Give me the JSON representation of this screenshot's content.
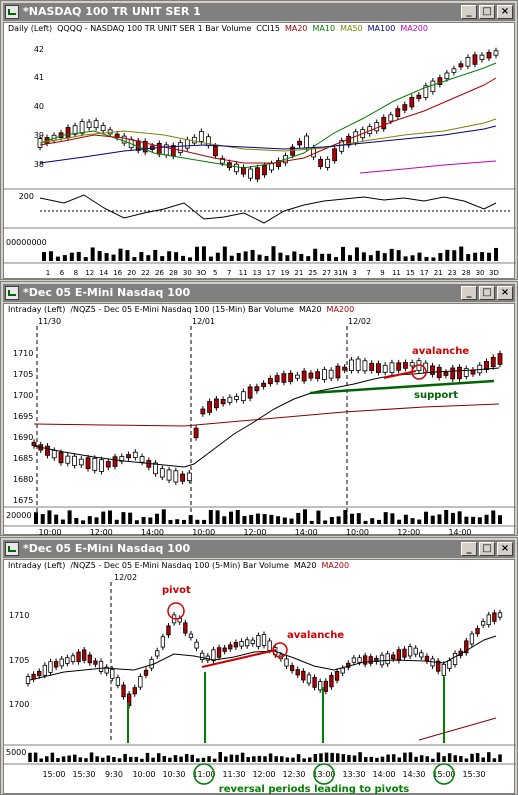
{
  "windows": [
    {
      "title": "*NASDAQ 100 TR UNIT SER 1",
      "legend": [
        {
          "text": "Daily  (Left)",
          "color": "#000000"
        },
        {
          "text": "QQQQ - NASDAQ 100 TR UNIT SER 1  Bar  Volume",
          "color": "#000000"
        },
        {
          "text": "CCI15",
          "color": "#000000"
        },
        {
          "text": "MA20",
          "color": "#b00000"
        },
        {
          "text": "MA10",
          "color": "#008000"
        },
        {
          "text": "MA50",
          "color": "#808000"
        },
        {
          "text": "MA100",
          "color": "#000080"
        },
        {
          "text": "MA200",
          "color": "#c000c0"
        }
      ],
      "price_labels": [
        "42",
        "41",
        "40",
        "39",
        "38"
      ],
      "cci_label": "200",
      "volume_label": "00000000",
      "x_labels": [
        "1",
        "6",
        "8",
        "12",
        "14",
        "16",
        "20",
        "22",
        "26",
        "28",
        "30",
        "3O",
        "5",
        "7",
        "11",
        "13",
        "17",
        "19",
        "21",
        "25",
        "27",
        "31N",
        "3",
        "7",
        "9",
        "11",
        "15",
        "17",
        "21",
        "23",
        "28",
        "30",
        "3D"
      ]
    },
    {
      "title": "*Dec 05  E-Mini Nasdaq 100",
      "legend": [
        {
          "text": "Intraday  (Left)",
          "color": "#000000"
        },
        {
          "text": "/NQZ5 - Dec 05  E-Mini Nasdaq 100 (15-Min)  Bar  Volume",
          "color": "#000000"
        },
        {
          "text": "MA20",
          "color": "#000000"
        },
        {
          "text": "MA200",
          "color": "#b00000"
        }
      ],
      "date_markers": [
        "11/30",
        "12/01",
        "12/02"
      ],
      "price_labels": [
        "1710",
        "1705",
        "1700",
        "1695",
        "1690",
        "1685",
        "1680",
        "1675"
      ],
      "volume_label": "20000",
      "x_labels": [
        "10:00",
        "12:00",
        "14:00",
        "10:00",
        "12:00",
        "14:00",
        "10:00",
        "12:00",
        "14:00"
      ],
      "annotations": {
        "avalanche": "avalanche",
        "support": "support"
      }
    },
    {
      "title": "*Dec 05  E-Mini Nasdaq 100",
      "legend": [
        {
          "text": "Intraday  (Left)",
          "color": "#000000"
        },
        {
          "text": "/NQZ5 - Dec 05  E-Mini Nasdaq 100 (5-Min)  Bar  Volume",
          "color": "#000000"
        },
        {
          "text": "MA20",
          "color": "#000000"
        },
        {
          "text": "MA200",
          "color": "#b00000"
        }
      ],
      "date_markers": [
        "12/02"
      ],
      "price_labels": [
        "1710",
        "1705",
        "1700"
      ],
      "volume_label": "5000",
      "x_labels": [
        "15:00",
        "15:30",
        "9:30",
        "10:00",
        "10:30",
        "11:00",
        "11:30",
        "12:00",
        "12:30",
        "13:00",
        "13:30",
        "14:00",
        "14:30",
        "15:00",
        "15:30"
      ],
      "annotations": {
        "pivot": "pivot",
        "avalanche": "avalanche",
        "footer": "reversal periods leading to pivots"
      }
    }
  ],
  "colors": {
    "up": "#ffffff",
    "down": "#b00000",
    "annotation_red": "#d00000",
    "annotation_green": "#008000",
    "ma_black": "#000000",
    "ma_red": "#8b0000"
  }
}
